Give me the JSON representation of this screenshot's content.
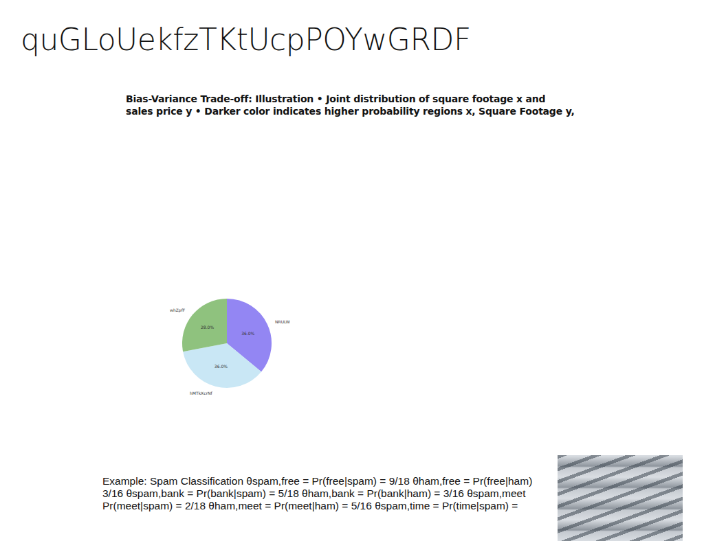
{
  "slide": {
    "title": "quGLoUekfzTKtUcpPOYwGRDF",
    "heading_lines": [
      "Bias-Variance Trade-off: Illustration • Joint distribution of square footage x and",
      "sales price y • Darker color indicates higher probability regions x, Square Footage y,"
    ],
    "body_lines": [
      "Example: Spam Classification θspam,free = Pr(free|spam) = 9/18 θham,free = Pr(free|ham)",
      "3/16 θspam,bank = Pr(bank|spam) = 5/18 θham,bank = Pr(bank|ham) = 3/16 θspam,meet",
      "Pr(meet|spam) = 2/18 θham,meet = Pr(meet|ham) = 5/16 θspam,time = Pr(time|spam) ="
    ]
  },
  "chart_data": {
    "type": "pie",
    "categories": [
      "NRULW",
      "hMTkXcrNf",
      "whZpfF"
    ],
    "values": [
      36,
      36,
      28
    ],
    "value_labels": [
      "36.0%",
      "36.0%",
      "28.0%"
    ],
    "colors": [
      "#9386f3",
      "#c9e7f5",
      "#8fc27e"
    ],
    "data_labels": true
  }
}
